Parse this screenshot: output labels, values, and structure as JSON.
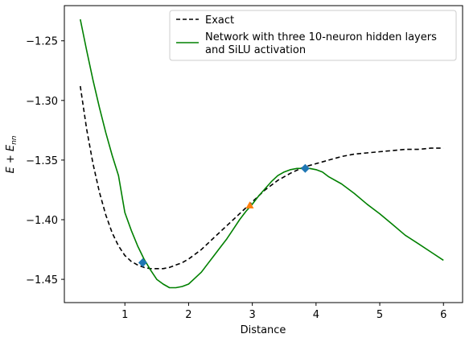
{
  "chart_data": {
    "type": "line",
    "xlabel": "Distance",
    "ylabel_parts": {
      "E": "E",
      "plus": " + ",
      "E2": "E",
      "sub": "nn"
    },
    "xlim": [
      0.05,
      6.3
    ],
    "ylim": [
      -1.4695,
      -1.2205
    ],
    "x_ticks": [
      1,
      2,
      3,
      4,
      5,
      6
    ],
    "y_ticks": [
      -1.25,
      -1.3,
      -1.35,
      -1.4,
      -1.45
    ],
    "x_tick_labels": [
      "1",
      "2",
      "3",
      "4",
      "5",
      "6"
    ],
    "y_tick_labels": [
      "−1.25",
      "−1.30",
      "−1.35",
      "−1.40",
      "−1.45"
    ],
    "legend": {
      "position": "top-right",
      "entries": [
        {
          "label_lines": [
            "Exact"
          ],
          "style": "dashed",
          "color": "#000000"
        },
        {
          "label_lines": [
            "Network with three 10-neuron hidden layers",
            "and SiLU activation"
          ],
          "style": "solid",
          "color": "#008000"
        }
      ]
    },
    "series": [
      {
        "name": "Exact",
        "color": "#000000",
        "dashed": true,
        "x": [
          0.3,
          0.4,
          0.5,
          0.6,
          0.7,
          0.8,
          0.9,
          1.0,
          1.1,
          1.2,
          1.3,
          1.4,
          1.5,
          1.6,
          1.7,
          1.8,
          1.9,
          2.0,
          2.2,
          2.4,
          2.6,
          2.8,
          3.0,
          3.2,
          3.4,
          3.6,
          3.8,
          4.0,
          4.2,
          4.4,
          4.6,
          4.8,
          5.0,
          5.2,
          5.4,
          5.6,
          5.8,
          6.0
        ],
        "y": [
          -1.288,
          -1.324,
          -1.353,
          -1.377,
          -1.396,
          -1.411,
          -1.422,
          -1.43,
          -1.435,
          -1.438,
          -1.44,
          -1.441,
          -1.441,
          -1.441,
          -1.44,
          -1.438,
          -1.436,
          -1.433,
          -1.425,
          -1.415,
          -1.405,
          -1.395,
          -1.385,
          -1.375,
          -1.367,
          -1.361,
          -1.356,
          -1.353,
          -1.35,
          -1.347,
          -1.345,
          -1.344,
          -1.343,
          -1.342,
          -1.341,
          -1.341,
          -1.34,
          -1.34
        ]
      },
      {
        "name": "Network with three 10-neuron hidden layers and SiLU activation",
        "color": "#008000",
        "dashed": false,
        "x": [
          0.3,
          0.4,
          0.5,
          0.6,
          0.7,
          0.8,
          0.9,
          1.0,
          1.1,
          1.2,
          1.3,
          1.4,
          1.5,
          1.6,
          1.7,
          1.8,
          1.9,
          2.0,
          2.1,
          2.2,
          2.3,
          2.4,
          2.5,
          2.6,
          2.7,
          2.8,
          2.9,
          3.0,
          3.1,
          3.2,
          3.3,
          3.4,
          3.5,
          3.6,
          3.7,
          3.8,
          3.9,
          4.0,
          4.1,
          4.2,
          4.4,
          4.6,
          4.8,
          5.0,
          5.2,
          5.4,
          5.6,
          5.8,
          6.0
        ],
        "y": [
          -1.232,
          -1.258,
          -1.283,
          -1.306,
          -1.327,
          -1.346,
          -1.363,
          -1.394,
          -1.409,
          -1.422,
          -1.433,
          -1.442,
          -1.45,
          -1.454,
          -1.457,
          -1.457,
          -1.456,
          -1.454,
          -1.449,
          -1.444,
          -1.437,
          -1.43,
          -1.423,
          -1.416,
          -1.408,
          -1.4,
          -1.393,
          -1.387,
          -1.38,
          -1.374,
          -1.368,
          -1.363,
          -1.36,
          -1.358,
          -1.357,
          -1.357,
          -1.357,
          -1.358,
          -1.36,
          -1.364,
          -1.37,
          -1.378,
          -1.387,
          -1.395,
          -1.404,
          -1.413,
          -1.42,
          -1.427,
          -1.434
        ]
      }
    ],
    "markers": [
      {
        "x": 1.28,
        "y": -1.436,
        "shape": "diamond",
        "color": "#1f77b4"
      },
      {
        "x": 3.83,
        "y": -1.357,
        "shape": "diamond",
        "color": "#1f77b4"
      },
      {
        "x": 2.96,
        "y": -1.388,
        "shape": "triangle-up",
        "color": "#ff7f0e"
      }
    ]
  }
}
